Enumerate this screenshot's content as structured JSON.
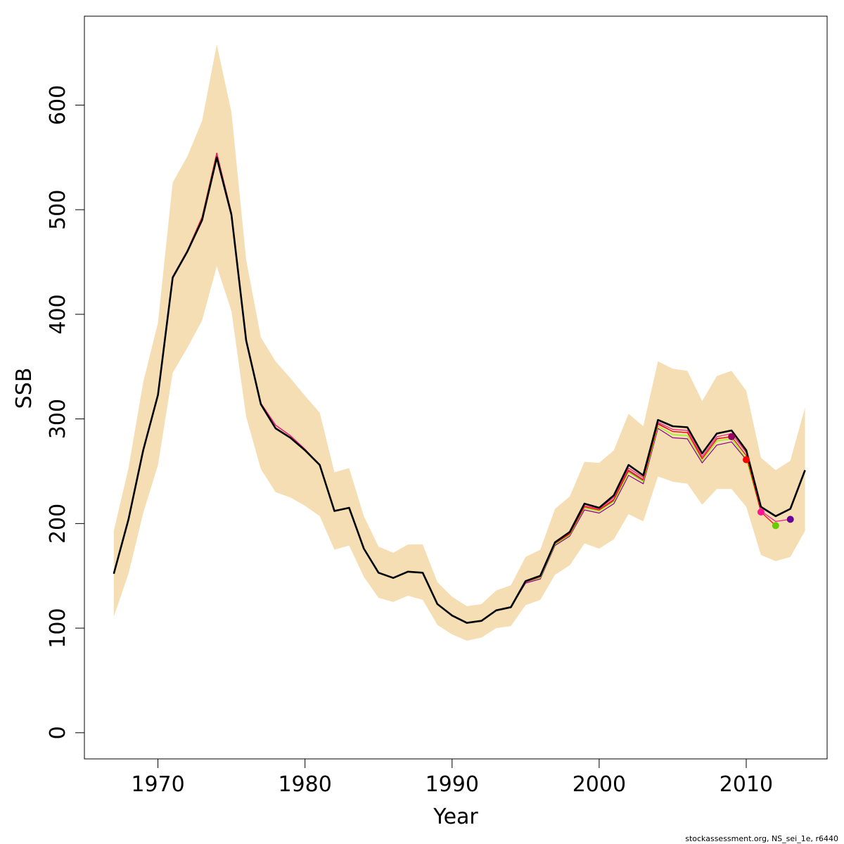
{
  "chart_data": {
    "type": "line",
    "xlabel": "Year",
    "ylabel": "SSB",
    "xlim": [
      1965,
      2015.5
    ],
    "ylim": [
      -25,
      685
    ],
    "x_ticks": [
      1970,
      1980,
      1990,
      2000,
      2010
    ],
    "y_ticks": [
      0,
      100,
      200,
      300,
      400,
      500,
      600
    ],
    "grid": false,
    "legend": "none",
    "footer": "stockassessment.org, NS_sei_1e, r6440",
    "colors": {
      "band": "#f5deb3",
      "main_line": "#000000",
      "retro": [
        "#ff1493",
        "#ff0000",
        "#7fff00",
        "#8b008b",
        "#b03060"
      ],
      "endpoints": [
        "#990066",
        "#ff0000",
        "#ff1493",
        "#66cc00",
        "#660099"
      ]
    },
    "confidence_band": {
      "x": [
        1967,
        1968,
        1969,
        1970,
        1971,
        1972,
        1973,
        1974,
        1975,
        1976,
        1977,
        1978,
        1979,
        1980,
        1981,
        1982,
        1983,
        1984,
        1985,
        1986,
        1987,
        1988,
        1989,
        1990,
        1991,
        1992,
        1993,
        1994,
        1995,
        1996,
        1997,
        1998,
        1999,
        2000,
        2001,
        2002,
        2003,
        2004,
        2005,
        2006,
        2007,
        2008,
        2009,
        2010,
        2011,
        2012,
        2013,
        2014
      ],
      "upper": [
        193,
        253,
        335,
        392,
        526,
        551,
        585,
        658,
        593,
        452,
        378,
        355,
        339,
        322,
        306,
        249,
        253,
        207,
        178,
        172,
        180,
        180,
        144,
        130,
        121,
        123,
        136,
        141,
        168,
        175,
        214,
        226,
        259,
        258,
        270,
        305,
        293,
        355,
        348,
        346,
        317,
        341,
        346,
        327,
        263,
        251,
        260,
        311
      ],
      "lower": [
        111,
        152,
        210,
        256,
        344,
        368,
        394,
        446,
        403,
        302,
        252,
        230,
        225,
        217,
        207,
        175,
        179,
        149,
        129,
        125,
        131,
        127,
        103,
        94,
        88,
        91,
        100,
        102,
        122,
        127,
        151,
        160,
        181,
        176,
        185,
        209,
        202,
        245,
        240,
        238,
        218,
        233,
        233,
        216,
        170,
        164,
        168,
        193
      ]
    },
    "series": [
      {
        "x": [
          1967,
          1968,
          1969,
          1970,
          1971,
          1972,
          1973,
          1974,
          1975,
          1976,
          1977,
          1978,
          1979,
          1980,
          1981,
          1982,
          1983,
          1984,
          1985,
          1986,
          1987,
          1988,
          1989,
          1990,
          1991,
          1992,
          1993,
          1994,
          1995,
          1996,
          1997,
          1998,
          1999,
          2000,
          2001,
          2002,
          2003,
          2004,
          2005,
          2006,
          2007,
          2008,
          2009,
          2010,
          2011,
          2012,
          2013,
          2014
        ],
        "values": [
          152,
          204,
          270,
          323,
          435,
          460,
          490,
          550,
          495,
          375,
          314,
          291,
          282,
          270,
          256,
          212,
          215,
          176,
          153,
          148,
          154,
          153,
          123,
          112,
          105,
          107,
          117,
          120,
          145,
          150,
          182,
          192,
          219,
          215,
          227,
          256,
          246,
          299,
          293,
          292,
          267,
          286,
          289,
          270,
          216,
          207,
          214,
          251
        ]
      },
      {
        "x": [
          1967,
          1968,
          1969,
          1970,
          1971,
          1972,
          1973,
          1974,
          1975,
          1976,
          1977,
          1978,
          1979,
          1980,
          1981,
          1982,
          1983,
          1984,
          1985,
          1986,
          1987,
          1988,
          1989,
          1990,
          1991,
          1992,
          1993,
          1994,
          1995,
          1996,
          1997,
          1998,
          1999,
          2000,
          2001,
          2002,
          2003,
          2004,
          2005,
          2006,
          2007,
          2008,
          2009,
          2010,
          2011,
          2012,
          2013
        ],
        "values": [
          152,
          204,
          271,
          324,
          436,
          461,
          492,
          553,
          497,
          376,
          315,
          294,
          284,
          271,
          256,
          212,
          215,
          176,
          153,
          148,
          154,
          153,
          123,
          112,
          105,
          107,
          117,
          120,
          144,
          149,
          181,
          191,
          217,
          214,
          225,
          253,
          244,
          297,
          290,
          289,
          264,
          283,
          286,
          268,
          212,
          202,
          204
        ]
      },
      {
        "x": [
          1967,
          1968,
          1969,
          1970,
          1971,
          1972,
          1973,
          1974,
          1975,
          1976,
          1977,
          1978,
          1979,
          1980,
          1981,
          1982,
          1983,
          1984,
          1985,
          1986,
          1987,
          1988,
          1989,
          1990,
          1991,
          1992,
          1993,
          1994,
          1995,
          1996,
          1997,
          1998,
          1999,
          2000,
          2001,
          2002,
          2003,
          2004,
          2005,
          2006,
          2007,
          2008,
          2009,
          2010,
          2011,
          2012
        ],
        "values": [
          152,
          204,
          271,
          324,
          436,
          461,
          493,
          554,
          497,
          376,
          315,
          294,
          284,
          271,
          256,
          212,
          215,
          176,
          153,
          148,
          154,
          153,
          123,
          112,
          105,
          107,
          117,
          120,
          144,
          149,
          181,
          190,
          216,
          213,
          223,
          251,
          242,
          295,
          288,
          287,
          262,
          281,
          283,
          265,
          211,
          198
        ]
      },
      {
        "x": [
          1967,
          1968,
          1969,
          1970,
          1971,
          1972,
          1973,
          1974,
          1975,
          1976,
          1977,
          1978,
          1979,
          1980,
          1981,
          1982,
          1983,
          1984,
          1985,
          1986,
          1987,
          1988,
          1989,
          1990,
          1991,
          1992,
          1993,
          1994,
          1995,
          1996,
          1997,
          1998,
          1999,
          2000,
          2001,
          2002,
          2003,
          2004,
          2005,
          2006,
          2007,
          2008,
          2009,
          2010,
          2011
        ],
        "values": [
          152,
          204,
          271,
          324,
          436,
          461,
          493,
          554,
          497,
          376,
          315,
          294,
          284,
          271,
          256,
          212,
          215,
          176,
          153,
          148,
          154,
          153,
          123,
          112,
          105,
          107,
          117,
          120,
          144,
          148,
          180,
          189,
          215,
          212,
          221,
          249,
          240,
          293,
          285,
          284,
          260,
          279,
          281,
          262,
          211
        ]
      },
      {
        "x": [
          1967,
          1968,
          1969,
          1970,
          1971,
          1972,
          1973,
          1974,
          1975,
          1976,
          1977,
          1978,
          1979,
          1980,
          1981,
          1982,
          1983,
          1984,
          1985,
          1986,
          1987,
          1988,
          1989,
          1990,
          1991,
          1992,
          1993,
          1994,
          1995,
          1996,
          1997,
          1998,
          1999,
          2000,
          2001,
          2002,
          2003,
          2004,
          2005,
          2006,
          2007,
          2008,
          2009,
          2010
        ],
        "values": [
          152,
          204,
          271,
          324,
          436,
          461,
          493,
          554,
          497,
          376,
          315,
          294,
          284,
          271,
          256,
          212,
          215,
          176,
          153,
          148,
          154,
          153,
          123,
          112,
          105,
          107,
          117,
          120,
          143,
          147,
          179,
          188,
          213,
          210,
          219,
          246,
          238,
          291,
          282,
          281,
          258,
          275,
          278,
          261
        ]
      },
      {
        "x": [
          1967,
          1968,
          1969,
          1970,
          1971,
          1972,
          1973,
          1974,
          1975,
          1976,
          1977,
          1978,
          1979,
          1980,
          1981,
          1982,
          1983,
          1984,
          1985,
          1986,
          1987,
          1988,
          1989,
          1990,
          1991,
          1992,
          1993,
          1994,
          1995,
          1996,
          1997,
          1998,
          1999,
          2000,
          2001,
          2002,
          2003,
          2004,
          2005,
          2006,
          2007,
          2008,
          2009
        ],
        "values": [
          152,
          204,
          271,
          324,
          436,
          461,
          493,
          554,
          497,
          376,
          315,
          294,
          284,
          271,
          256,
          212,
          215,
          176,
          153,
          148,
          154,
          153,
          123,
          112,
          105,
          107,
          117,
          120,
          144,
          148,
          180,
          190,
          215,
          212,
          222,
          250,
          241,
          296,
          288,
          287,
          262,
          281,
          283
        ]
      }
    ],
    "endpoints": [
      {
        "x": 2009,
        "y": 283
      },
      {
        "x": 2010,
        "y": 261
      },
      {
        "x": 2011,
        "y": 211
      },
      {
        "x": 2012,
        "y": 198
      },
      {
        "x": 2013,
        "y": 204
      }
    ]
  }
}
